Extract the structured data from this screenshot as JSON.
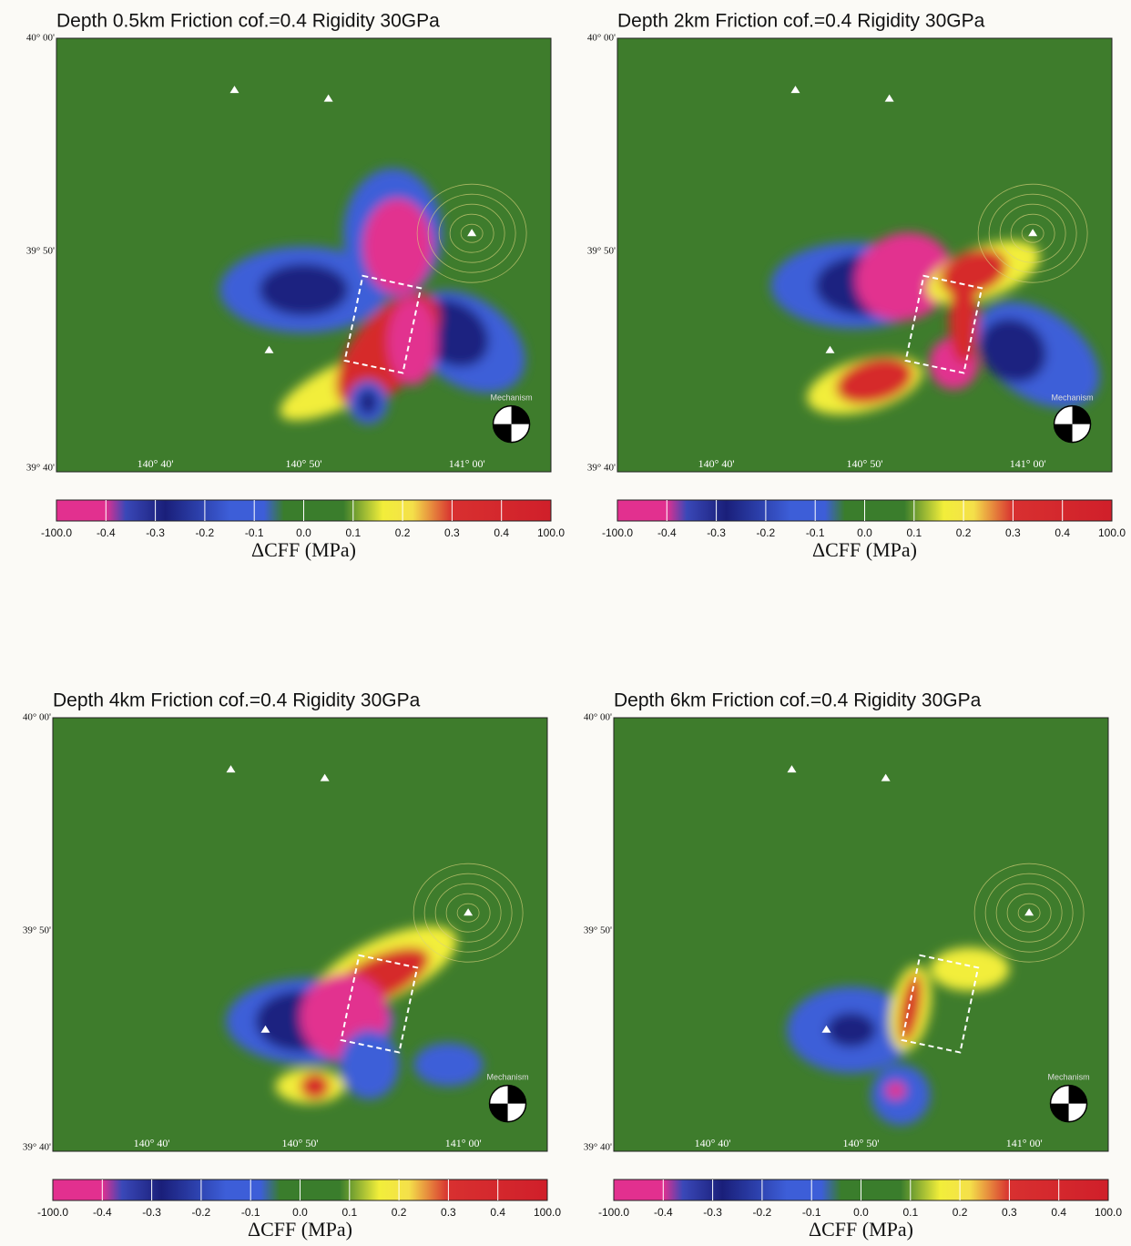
{
  "panels": [
    {
      "title": "Depth 0.5km  Friction cof.=0.4 Rigidity 30GPa",
      "lat_labels": [
        "40° 00'",
        "39° 50'",
        "39° 40'"
      ],
      "lon_labels": [
        "140° 40'",
        "140° 50'",
        "141° 00'"
      ],
      "mechanism_label": "Mechanism",
      "colorbar": {
        "ticks": [
          "-100.0",
          "-0.4",
          "-0.3",
          "-0.2",
          "-0.1",
          "0.0",
          "0.1",
          "0.2",
          "0.3",
          "0.4",
          "100.0"
        ],
        "label": "ΔCFF (MPa)"
      }
    },
    {
      "title": "Depth 2km  Friction cof.=0.4 Rigidity 30GPa",
      "lat_labels": [
        "40° 00'",
        "39° 50'",
        "39° 40'"
      ],
      "lon_labels": [
        "140° 40'",
        "140° 50'",
        "141° 00'"
      ],
      "mechanism_label": "Mechanism",
      "colorbar": {
        "ticks": [
          "-100.0",
          "-0.4",
          "-0.3",
          "-0.2",
          "-0.1",
          "0.0",
          "0.1",
          "0.2",
          "0.3",
          "0.4",
          "100.0"
        ],
        "label": "ΔCFF (MPa)"
      }
    },
    {
      "title": "Depth 4km  Friction cof.=0.4 Rigidity 30GPa",
      "lat_labels": [
        "40° 00'",
        "39° 50'",
        "39° 40'"
      ],
      "lon_labels": [
        "140° 40'",
        "140° 50'",
        "141° 00'"
      ],
      "mechanism_label": "Mechanism",
      "colorbar": {
        "ticks": [
          "-100.0",
          "-0.4",
          "-0.3",
          "-0.2",
          "-0.1",
          "0.0",
          "0.1",
          "0.2",
          "0.3",
          "0.4",
          "100.0"
        ],
        "label": "ΔCFF (MPa)"
      }
    },
    {
      "title": "Depth 6km  Friction cof.=0.4 Rigidity 30GPa",
      "lat_labels": [
        "40° 00'",
        "39° 50'",
        "39° 40'"
      ],
      "lon_labels": [
        "140° 40'",
        "140° 50'",
        "141° 00'"
      ],
      "mechanism_label": "Mechanism",
      "colorbar": {
        "ticks": [
          "-100.0",
          "-0.4",
          "-0.3",
          "-0.2",
          "-0.1",
          "0.0",
          "0.1",
          "0.2",
          "0.3",
          "0.4",
          "100.0"
        ],
        "label": "ΔCFF (MPa)"
      }
    }
  ]
}
